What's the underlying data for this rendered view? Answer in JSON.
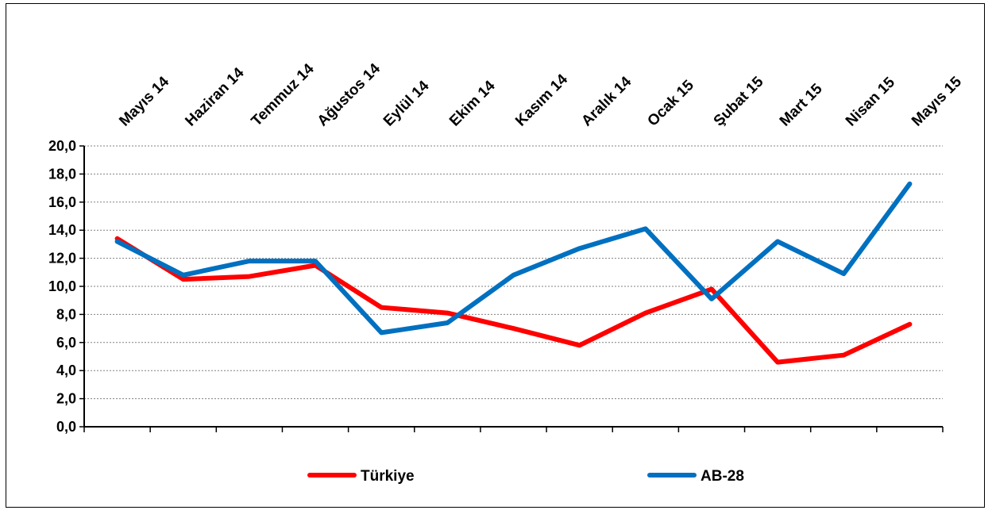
{
  "chart_data": {
    "type": "line",
    "categories": [
      "Mayıs 14",
      "Haziran 14",
      "Temmuz 14",
      "Ağustos 14",
      "Eylül 14",
      "Ekim 14",
      "Kasım 14",
      "Aralık 14",
      "Ocak 15",
      "Şubat 15",
      "Mart 15",
      "Nisan 15",
      "Mayıs 15"
    ],
    "series": [
      {
        "name": "Türkiye",
        "color": "#ff0000",
        "values": [
          13.4,
          10.5,
          10.7,
          11.5,
          8.5,
          8.1,
          7.0,
          5.8,
          8.1,
          9.8,
          4.6,
          5.1,
          7.3
        ]
      },
      {
        "name": "AB-28",
        "color": "#0070c0",
        "values": [
          13.2,
          10.8,
          11.8,
          11.8,
          6.7,
          7.4,
          10.8,
          12.7,
          14.1,
          9.1,
          13.2,
          10.9,
          17.3
        ]
      }
    ],
    "ylim": [
      0,
      20
    ],
    "ytick_step": 2,
    "ytick_labels": [
      "0,0",
      "2,0",
      "4,0",
      "6,0",
      "8,0",
      "10,0",
      "12,0",
      "14,0",
      "16,0",
      "18,0",
      "20,0"
    ],
    "grid": true,
    "legend_position": "bottom",
    "title": "",
    "xlabel": "",
    "ylabel": ""
  }
}
